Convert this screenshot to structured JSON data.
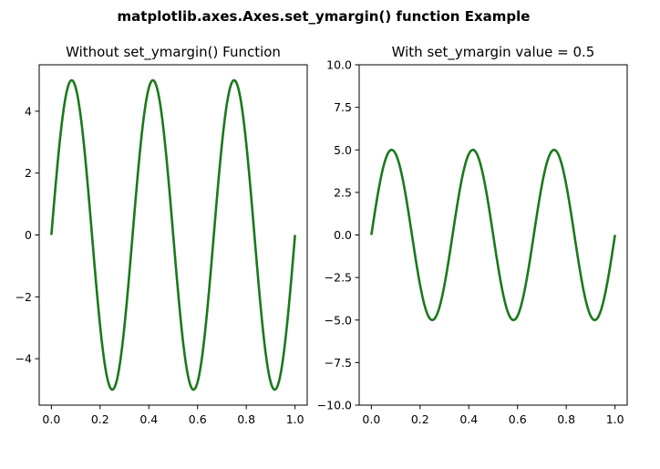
{
  "figure": {
    "suptitle": "matplotlib.axes.Axes.set_ymargin() function Example"
  },
  "chart_data": [
    {
      "type": "line",
      "title": "Without set_ymargin() Function",
      "xlabel": "",
      "ylabel": "",
      "function": "5*sin(6*pi*x)",
      "x_range": [
        0.0,
        1.0
      ],
      "xlim": [
        -0.05,
        1.05
      ],
      "ylim": [
        -5.5,
        5.5
      ],
      "xticks": [
        0.0,
        0.2,
        0.4,
        0.6,
        0.8,
        1.0
      ],
      "xtick_labels": [
        "0.0",
        "0.2",
        "0.4",
        "0.6",
        "0.8",
        "1.0"
      ],
      "yticks": [
        -4,
        -2,
        0,
        2,
        4
      ],
      "ytick_labels": [
        "−4",
        "−2",
        "0",
        "2",
        "4"
      ],
      "line_color": "#1a7a1a",
      "grid": false,
      "series": [
        {
          "x": [
            0.0,
            0.083,
            0.25,
            0.417,
            0.583,
            0.75,
            0.917,
            1.0
          ],
          "y": [
            0,
            5,
            -5,
            5,
            -5,
            5,
            -5,
            0
          ]
        }
      ]
    },
    {
      "type": "line",
      "title": "With set_ymargin value = 0.5",
      "xlabel": "",
      "ylabel": "",
      "function": "5*sin(6*pi*x)",
      "x_range": [
        0.0,
        1.0
      ],
      "xlim": [
        -0.05,
        1.05
      ],
      "ylim": [
        -10.0,
        10.0
      ],
      "xticks": [
        0.0,
        0.2,
        0.4,
        0.6,
        0.8,
        1.0
      ],
      "xtick_labels": [
        "0.0",
        "0.2",
        "0.4",
        "0.6",
        "0.8",
        "1.0"
      ],
      "yticks": [
        -10.0,
        -7.5,
        -5.0,
        -2.5,
        0.0,
        2.5,
        5.0,
        7.5,
        10.0
      ],
      "ytick_labels": [
        "−10.0",
        "−7.5",
        "−5.0",
        "−2.5",
        "0.0",
        "2.5",
        "5.0",
        "7.5",
        "10.0"
      ],
      "line_color": "#1a7a1a",
      "grid": false,
      "series": [
        {
          "x": [
            0.0,
            0.083,
            0.25,
            0.417,
            0.583,
            0.75,
            0.917,
            1.0
          ],
          "y": [
            0,
            5,
            -5,
            5,
            -5,
            5,
            -5,
            0
          ]
        }
      ]
    }
  ]
}
